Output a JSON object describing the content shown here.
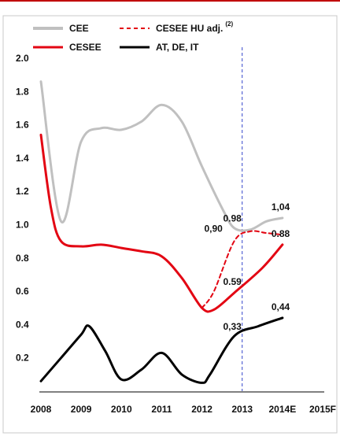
{
  "chart_data": {
    "type": "line",
    "title": "",
    "xlabel": "",
    "ylabel": "",
    "categories": [
      "2008",
      "2009",
      "2010",
      "2011",
      "2012",
      "2013",
      "2014E",
      "2015F"
    ],
    "y_ticks": [
      "0.2",
      "0.4",
      "0.6",
      "0.8",
      "1.0",
      "1.2",
      "1.4",
      "1.6",
      "1.8",
      "2.0"
    ],
    "ylim": [
      0.0,
      2.0
    ],
    "grid": false,
    "legend_position": "top",
    "vertical_marker_category": "2013",
    "series": [
      {
        "name": "CEE",
        "color": "#c0c0c0",
        "dash": "solid",
        "points": [
          [
            0,
            1.86
          ],
          [
            0.5,
            1.02
          ],
          [
            1.0,
            1.5
          ],
          [
            1.5,
            1.58
          ],
          [
            2.0,
            1.57
          ],
          [
            2.5,
            1.62
          ],
          [
            3.0,
            1.72
          ],
          [
            3.5,
            1.62
          ],
          [
            4.0,
            1.35
          ],
          [
            4.5,
            1.1
          ],
          [
            4.8,
            0.98
          ],
          [
            5.2,
            0.97
          ],
          [
            5.6,
            1.02
          ],
          [
            6.0,
            1.04
          ]
        ]
      },
      {
        "name": "CESEE",
        "color": "#e30613",
        "dash": "solid",
        "points": [
          [
            0,
            1.54
          ],
          [
            0.25,
            1.1
          ],
          [
            0.5,
            0.9
          ],
          [
            1.0,
            0.87
          ],
          [
            1.5,
            0.88
          ],
          [
            2.0,
            0.86
          ],
          [
            2.5,
            0.84
          ],
          [
            3.0,
            0.81
          ],
          [
            3.5,
            0.68
          ],
          [
            4.0,
            0.5
          ],
          [
            4.3,
            0.49
          ],
          [
            4.8,
            0.59
          ],
          [
            5.5,
            0.74
          ],
          [
            6.0,
            0.88
          ]
        ]
      },
      {
        "name": "CESEE HU adj.",
        "name_sup": "(2)",
        "color": "#e30613",
        "dash": "dashed",
        "points": [
          [
            4.0,
            0.5
          ],
          [
            4.3,
            0.6
          ],
          [
            4.8,
            0.9
          ],
          [
            5.2,
            0.96
          ],
          [
            5.6,
            0.95
          ],
          [
            6.0,
            0.94
          ]
        ]
      },
      {
        "name": "AT, DE, IT",
        "color": "#000000",
        "dash": "solid",
        "points": [
          [
            0,
            0.06
          ],
          [
            0.5,
            0.2
          ],
          [
            1.0,
            0.34
          ],
          [
            1.2,
            0.39
          ],
          [
            1.6,
            0.24
          ],
          [
            2.0,
            0.07
          ],
          [
            2.5,
            0.13
          ],
          [
            3.0,
            0.23
          ],
          [
            3.5,
            0.1
          ],
          [
            4.0,
            0.05
          ],
          [
            4.2,
            0.1
          ],
          [
            4.8,
            0.33
          ],
          [
            5.4,
            0.39
          ],
          [
            6.0,
            0.44
          ]
        ]
      }
    ],
    "data_labels": [
      {
        "text": "1,04",
        "series": "CEE",
        "x": 6.0,
        "y": 1.04
      },
      {
        "text": "0.98",
        "series": "CEE",
        "x": 4.8,
        "y": 0.98
      },
      {
        "text": "0,90",
        "series": "CESEE HU adj.",
        "x": 4.8,
        "y": 0.9
      },
      {
        "text": "0.88",
        "series": "CESEE",
        "x": 6.0,
        "y": 0.88
      },
      {
        "text": "0.59",
        "series": "CESEE",
        "x": 4.8,
        "y": 0.59
      },
      {
        "text": "0,44",
        "series": "AT, DE, IT",
        "x": 6.0,
        "y": 0.44
      },
      {
        "text": "0,33",
        "series": "AT, DE, IT",
        "x": 4.8,
        "y": 0.33
      }
    ]
  },
  "colors": {
    "top_rule": "#c00000",
    "frame": "#c8c8c8",
    "marker": "#3344cc"
  }
}
